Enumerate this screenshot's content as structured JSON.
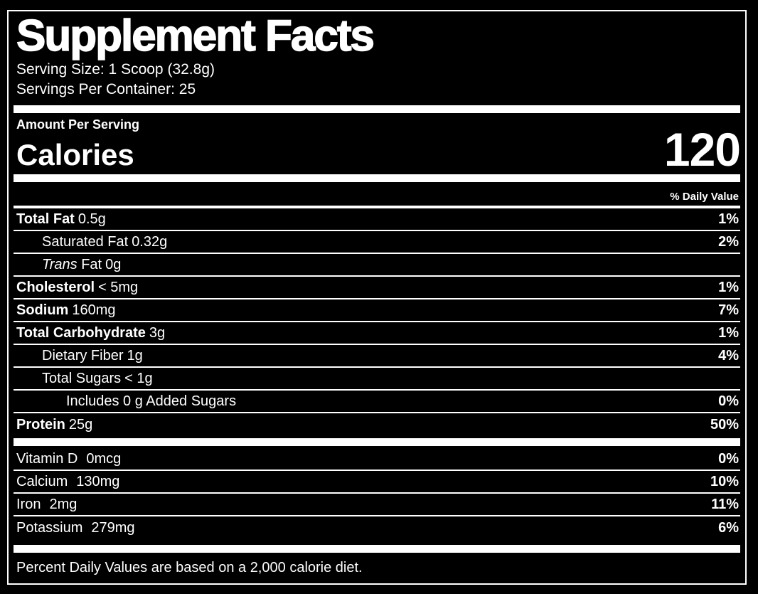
{
  "header": {
    "title": "Supplement Facts",
    "serving_size": "Serving Size: 1 Scoop (32.8g)",
    "servings_per_container": "Servings Per Container: 25"
  },
  "calories": {
    "heading": "Amount Per Serving",
    "label": "Calories",
    "value": "120"
  },
  "table": {
    "daily_value_header": "% Daily Value",
    "rows": [
      {
        "name": "Total Fat",
        "bold": true,
        "amount": "0.5g",
        "dv": "1%",
        "indent": 0
      },
      {
        "name": "Saturated Fat",
        "bold": false,
        "amount": "0.32g",
        "dv": "2%",
        "indent": 1
      },
      {
        "name": "Trans",
        "italic": true,
        "suffix": " Fat",
        "bold": false,
        "amount": "0g",
        "dv": "",
        "indent": 1
      },
      {
        "name": "Cholesterol",
        "bold": true,
        "amount": "< 5mg",
        "dv": "1%",
        "indent": 0
      },
      {
        "name": "Sodium",
        "bold": true,
        "amount": "160mg",
        "dv": "7%",
        "indent": 0
      },
      {
        "name": "Total Carbohydrate",
        "bold": true,
        "amount": "3g",
        "dv": "1%",
        "indent": 0
      },
      {
        "name": "Dietary Fiber",
        "bold": false,
        "amount": "1g",
        "dv": "4%",
        "indent": 1
      },
      {
        "name": "Total Sugars",
        "bold": false,
        "amount": "< 1g",
        "dv": "",
        "indent": 1
      },
      {
        "name": "Includes 0 g Added Sugars",
        "bold": false,
        "amount": "",
        "dv": "0%",
        "indent": 2
      },
      {
        "name": "Protein",
        "bold": true,
        "amount": "25g",
        "dv": "50%",
        "indent": 0
      }
    ],
    "micronutrients": [
      {
        "name": "Vitamin D",
        "amount": "0mcg",
        "dv": "0%"
      },
      {
        "name": "Calcium",
        "amount": "130mg",
        "dv": "10%"
      },
      {
        "name": "Iron",
        "amount": "2mg",
        "dv": "11%"
      },
      {
        "name": "Potassium",
        "amount": "279mg",
        "dv": "6%"
      }
    ]
  },
  "footnote": "Percent Daily Values are based on a 2,000 calorie diet.",
  "colors": {
    "background": "#000000",
    "text": "#ffffff",
    "rule": "#ffffff"
  }
}
